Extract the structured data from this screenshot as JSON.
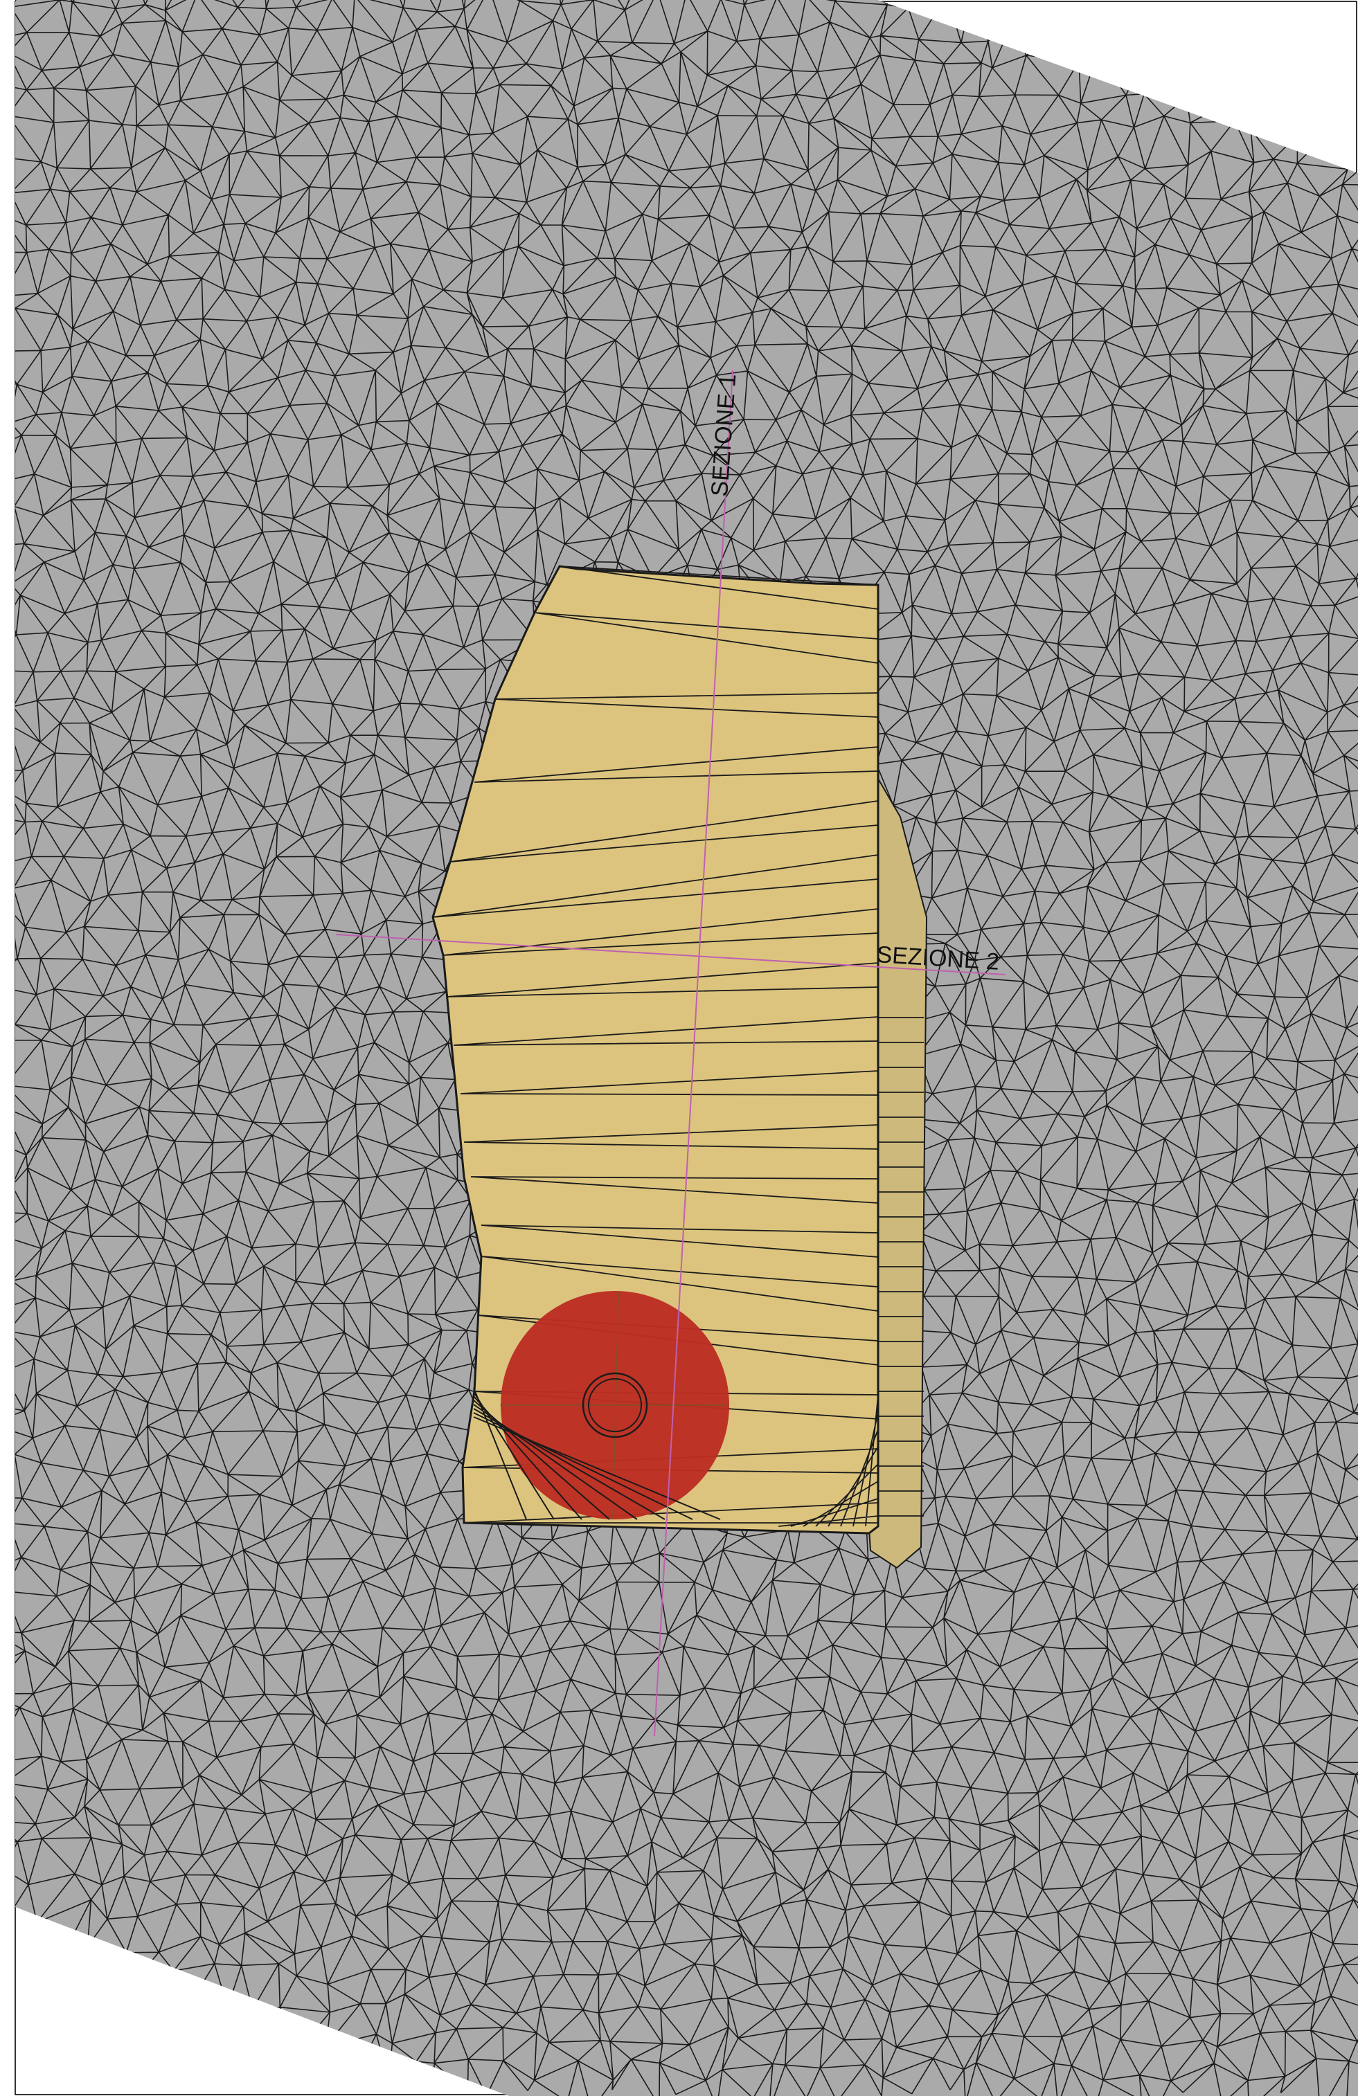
{
  "labels": {
    "section_1": "SEZIONE 1",
    "section_2": "SEZIONE 2"
  },
  "colors": {
    "terrain_fill": "#aaaaaa",
    "mesh_line": "#1a1a1a",
    "excavation_fill": "#dcc47e",
    "excavation_side_fill": "#cdb97b",
    "marker_fill": "#bc2e23",
    "section_line": "#c060b0",
    "frame": "#333333"
  },
  "icons": {
    "marker": "red-circle-target-icon"
  }
}
